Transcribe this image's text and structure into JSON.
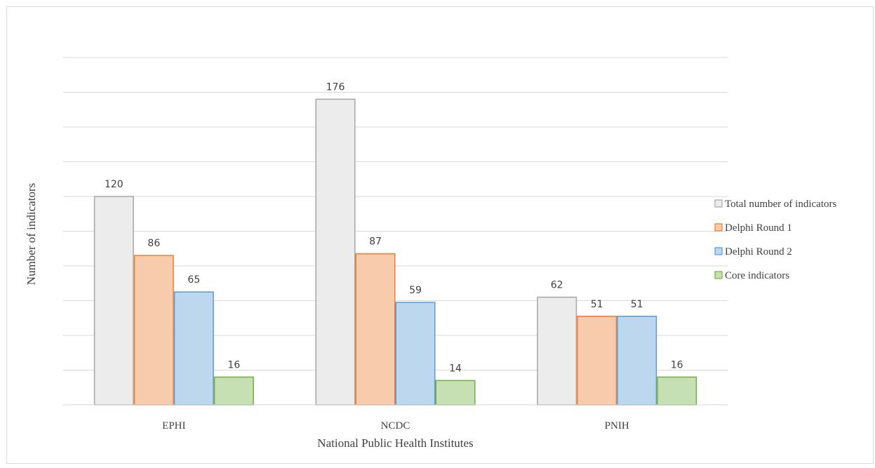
{
  "chart_data": {
    "type": "bar",
    "title": "",
    "xlabel": "National Public Health Institutes",
    "ylabel": "Number of indicators",
    "categories": [
      "EPHI",
      "NCDC",
      "PNIH"
    ],
    "series": [
      {
        "name": "Total number of indicators",
        "values": [
          120,
          176,
          62
        ],
        "fill": "#ececec",
        "stroke": "#a6a6a6"
      },
      {
        "name": "Delphi Round 1",
        "values": [
          86,
          87,
          51
        ],
        "fill": "#f8cbad",
        "stroke": "#ed7d31"
      },
      {
        "name": "Delphi Round 2",
        "values": [
          65,
          59,
          51
        ],
        "fill": "#bdd7ee",
        "stroke": "#5b9bd5"
      },
      {
        "name": "Core indicators",
        "values": [
          16,
          14,
          16
        ],
        "fill": "#c6e0b4",
        "stroke": "#70ad47"
      }
    ],
    "ylim": [
      0,
      200
    ],
    "grid": true,
    "legend_position": "right",
    "gridline_color": "#d9d9d9"
  }
}
